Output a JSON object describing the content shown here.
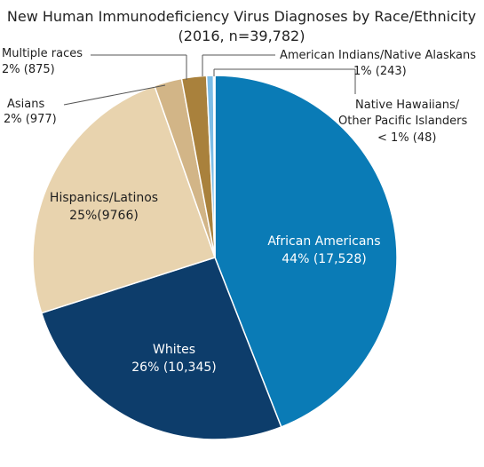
{
  "chart_data": {
    "type": "pie",
    "title": "New Human Immunodeficiency Virus Diagnoses by Race/Ethnicity",
    "subtitle": "(2016, n=39,782)",
    "total": 39782,
    "slices": [
      {
        "name": "African Americans",
        "percent_label": "44% (17,528)",
        "value": 17528,
        "color": "#0a7bb6",
        "label_style": "inside-light"
      },
      {
        "name": "Whites",
        "percent_label": "26% (10,345)",
        "value": 10345,
        "color": "#0d3d6b",
        "label_style": "inside-light"
      },
      {
        "name": "Hispanics/Latinos",
        "percent_label": "25%(9766)",
        "value": 9766,
        "color": "#e8d3ae",
        "label_style": "inside-dark"
      },
      {
        "name": "Asians",
        "percent_label": "2% (977)",
        "value": 977,
        "color": "#d2b587",
        "label_style": "outside"
      },
      {
        "name": "Multiple races",
        "percent_label": "2% (875)",
        "value": 875,
        "color": "#a9813c",
        "label_style": "outside"
      },
      {
        "name": "American Indians/Native Alaskans",
        "percent_label": "1% (243)",
        "value": 243,
        "color": "#7dbde6",
        "label_style": "outside"
      },
      {
        "name_lines": [
          "Native Hawaiians/",
          "Other Pacific Islanders"
        ],
        "percent_label": "< 1% (48)",
        "value": 48,
        "color": "#d5d5d5",
        "label_style": "outside"
      }
    ]
  }
}
